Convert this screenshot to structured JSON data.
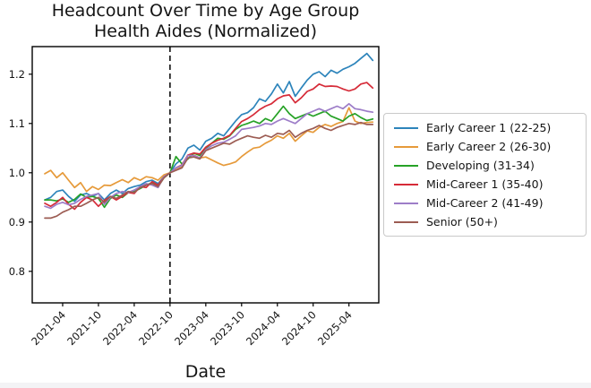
{
  "chart_data": {
    "type": "line",
    "title": "Headcount Over Time by Age Group",
    "subtitle": "Health Aides (Normalized)",
    "xlabel": "Date",
    "ylabel": "",
    "legend_position": "center right, outside axes",
    "grid": false,
    "ylim": [
      0.736,
      1.256
    ],
    "y_ticks": [
      "0.8",
      "0.9",
      "1.0",
      "1.1",
      "1.2"
    ],
    "x_tick_labels": [
      "2021-04",
      "2021-10",
      "2022-04",
      "2022-10",
      "2023-04",
      "2023-10",
      "2024-04",
      "2024-10",
      "2025-04"
    ],
    "reference_line": {
      "style": "vertical dashed black",
      "at": "2022-10"
    },
    "months": [
      "2021-01",
      "2021-02",
      "2021-03",
      "2021-04",
      "2021-05",
      "2021-06",
      "2021-07",
      "2021-08",
      "2021-09",
      "2021-10",
      "2021-11",
      "2021-12",
      "2022-01",
      "2022-02",
      "2022-03",
      "2022-04",
      "2022-05",
      "2022-06",
      "2022-07",
      "2022-08",
      "2022-09",
      "2022-10",
      "2022-11",
      "2022-12",
      "2023-01",
      "2023-02",
      "2023-03",
      "2023-04",
      "2023-05",
      "2023-06",
      "2023-07",
      "2023-08",
      "2023-09",
      "2023-10",
      "2023-11",
      "2023-12",
      "2024-01",
      "2024-02",
      "2024-03",
      "2024-04",
      "2024-05",
      "2024-06",
      "2024-07",
      "2024-08",
      "2024-09",
      "2024-10",
      "2024-11",
      "2024-12",
      "2025-01",
      "2025-02",
      "2025-03",
      "2025-04",
      "2025-05",
      "2025-06",
      "2025-07",
      "2025-08"
    ],
    "series": [
      {
        "name": "Early Career 1 (22-25)",
        "color": "#2d84bb",
        "values": [
          0.945,
          0.95,
          0.962,
          0.965,
          0.952,
          0.942,
          0.955,
          0.958,
          0.952,
          0.958,
          0.945,
          0.958,
          0.965,
          0.958,
          0.968,
          0.972,
          0.975,
          0.982,
          0.985,
          0.978,
          0.992,
          1.0,
          1.018,
          1.028,
          1.05,
          1.056,
          1.046,
          1.064,
          1.07,
          1.08,
          1.075,
          1.09,
          1.105,
          1.118,
          1.122,
          1.132,
          1.15,
          1.145,
          1.16,
          1.18,
          1.162,
          1.185,
          1.155,
          1.172,
          1.188,
          1.2,
          1.205,
          1.195,
          1.208,
          1.202,
          1.21,
          1.215,
          1.222,
          1.232,
          1.242,
          1.228
        ]
      },
      {
        "name": "Early Career 2 (26-30)",
        "color": "#e69a3a",
        "values": [
          0.998,
          1.005,
          0.99,
          1.0,
          0.985,
          0.97,
          0.98,
          0.962,
          0.972,
          0.966,
          0.975,
          0.974,
          0.98,
          0.986,
          0.98,
          0.99,
          0.985,
          0.992,
          0.99,
          0.985,
          0.996,
          1.0,
          1.006,
          1.012,
          1.03,
          1.036,
          1.03,
          1.032,
          1.026,
          1.02,
          1.015,
          1.018,
          1.022,
          1.033,
          1.042,
          1.05,
          1.052,
          1.06,
          1.066,
          1.075,
          1.07,
          1.08,
          1.064,
          1.075,
          1.085,
          1.082,
          1.092,
          1.098,
          1.094,
          1.1,
          1.104,
          1.132,
          1.105,
          1.1,
          1.102,
          1.103
        ]
      },
      {
        "name": "Developing (31-34)",
        "color": "#27a227",
        "values": [
          0.945,
          0.945,
          0.943,
          0.947,
          0.94,
          0.946,
          0.957,
          0.95,
          0.952,
          0.948,
          0.93,
          0.948,
          0.955,
          0.95,
          0.96,
          0.962,
          0.968,
          0.975,
          0.98,
          0.972,
          0.99,
          1.0,
          1.033,
          1.018,
          1.028,
          1.04,
          1.035,
          1.05,
          1.06,
          1.07,
          1.068,
          1.075,
          1.088,
          1.096,
          1.1,
          1.105,
          1.1,
          1.11,
          1.105,
          1.12,
          1.135,
          1.12,
          1.11,
          1.115,
          1.12,
          1.115,
          1.12,
          1.125,
          1.115,
          1.11,
          1.105,
          1.115,
          1.12,
          1.112,
          1.106,
          1.109
        ]
      },
      {
        "name": "Mid-Career 1 (35-40)",
        "color": "#d62b38",
        "values": [
          0.938,
          0.932,
          0.94,
          0.95,
          0.936,
          0.926,
          0.94,
          0.95,
          0.945,
          0.932,
          0.944,
          0.952,
          0.945,
          0.952,
          0.96,
          0.958,
          0.972,
          0.97,
          0.982,
          0.975,
          0.992,
          1.0,
          1.01,
          1.016,
          1.036,
          1.04,
          1.038,
          1.052,
          1.06,
          1.066,
          1.07,
          1.076,
          1.09,
          1.104,
          1.11,
          1.118,
          1.128,
          1.135,
          1.14,
          1.15,
          1.156,
          1.158,
          1.142,
          1.152,
          1.165,
          1.17,
          1.18,
          1.175,
          1.176,
          1.175,
          1.17,
          1.166,
          1.17,
          1.18,
          1.183,
          1.172
        ]
      },
      {
        "name": "Mid-Career 2 (41-49)",
        "color": "#9d7dc8",
        "values": [
          0.932,
          0.928,
          0.936,
          0.94,
          0.935,
          0.938,
          0.946,
          0.952,
          0.955,
          0.958,
          0.936,
          0.95,
          0.958,
          0.962,
          0.96,
          0.965,
          0.972,
          0.978,
          0.975,
          0.97,
          0.992,
          1.0,
          1.01,
          1.015,
          1.035,
          1.035,
          1.03,
          1.047,
          1.055,
          1.06,
          1.062,
          1.068,
          1.075,
          1.088,
          1.09,
          1.092,
          1.095,
          1.1,
          1.098,
          1.105,
          1.11,
          1.105,
          1.1,
          1.11,
          1.12,
          1.125,
          1.13,
          1.125,
          1.13,
          1.135,
          1.13,
          1.14,
          1.13,
          1.128,
          1.125,
          1.123
        ]
      },
      {
        "name": "Senior (50+)",
        "color": "#9c5c53",
        "values": [
          0.908,
          0.908,
          0.912,
          0.92,
          0.925,
          0.932,
          0.932,
          0.938,
          0.945,
          0.95,
          0.94,
          0.952,
          0.948,
          0.955,
          0.962,
          0.96,
          0.97,
          0.975,
          0.978,
          0.972,
          0.99,
          1.0,
          1.005,
          1.01,
          1.03,
          1.032,
          1.028,
          1.045,
          1.05,
          1.055,
          1.06,
          1.058,
          1.065,
          1.07,
          1.075,
          1.072,
          1.07,
          1.076,
          1.072,
          1.08,
          1.078,
          1.086,
          1.072,
          1.08,
          1.086,
          1.09,
          1.096,
          1.09,
          1.086,
          1.092,
          1.096,
          1.1,
          1.098,
          1.102,
          1.098,
          1.098
        ]
      }
    ]
  }
}
